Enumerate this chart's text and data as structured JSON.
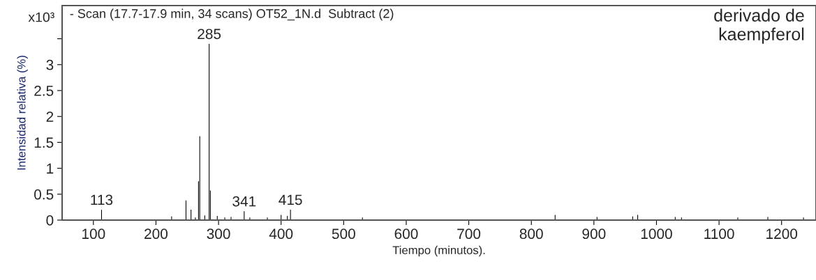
{
  "chart_data": {
    "type": "bar",
    "title": "- Scan (17.7-17.9 min, 34 scans) OT52_1N.d  Subtract (2)",
    "xlabel": "Tiempo (minutos).",
    "ylabel": "Intensidad relativa (%)",
    "x": [
      113,
      225,
      248,
      256,
      263,
      268,
      270,
      278,
      285,
      287,
      298,
      310,
      320,
      341,
      350,
      378,
      400,
      410,
      415,
      530,
      838,
      905,
      962,
      970,
      1030,
      1040,
      1130,
      1178,
      1235
    ],
    "series": [
      {
        "color": "#000000",
        "values": [
          0.2,
          0.07,
          0.38,
          0.2,
          0.05,
          0.75,
          1.62,
          0.09,
          3.4,
          0.57,
          0.08,
          0.05,
          0.06,
          0.17,
          0.05,
          0.05,
          0.1,
          0.08,
          0.2,
          0.05,
          0.1,
          0.06,
          0.07,
          0.1,
          0.06,
          0.05,
          0.05,
          0.06,
          0.05
        ]
      }
    ],
    "xlim": [
      50,
      1255
    ],
    "ylim": [
      0,
      4.14
    ],
    "xticks": [
      100,
      200,
      300,
      400,
      500,
      600,
      700,
      800,
      900,
      1000,
      1100,
      1200
    ],
    "yticks": [
      0,
      {
        "value": 0.5,
        "label": "0.5"
      },
      1,
      {
        "value": 1.5,
        "label": "1.5"
      },
      2,
      {
        "value": 2.5,
        "label": "2.5"
      },
      3,
      {
        "value": 3.5,
        "label": null
      }
    ],
    "annotations": [
      "x10³",
      "derivado de\nkaempferol",
      {
        "text": "113",
        "x": 113,
        "y": 0.2
      },
      {
        "text": "285",
        "x": 285,
        "y": 3.4
      },
      {
        "text": "341",
        "x": 341,
        "y": 0.17
      },
      {
        "text": "415",
        "x": 415,
        "y": 0.2
      }
    ]
  }
}
